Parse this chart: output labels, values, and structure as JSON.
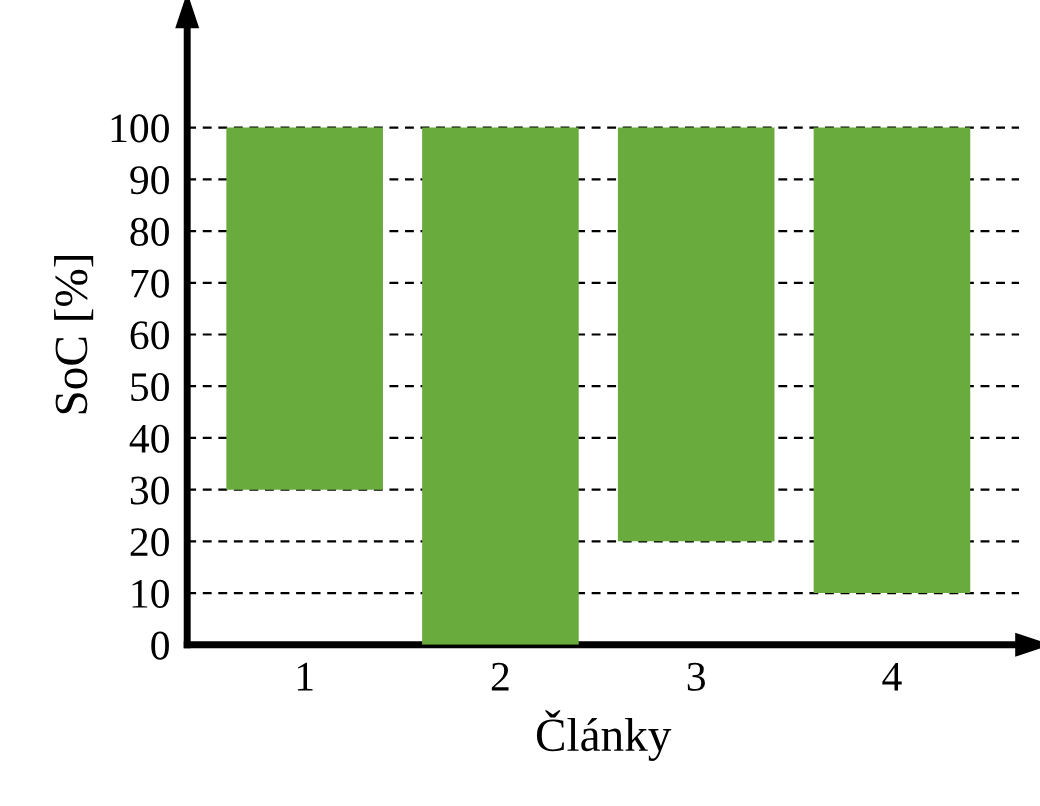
{
  "chart_data": {
    "type": "bar",
    "xlabel": "Články",
    "ylabel": "SoC [%]",
    "categories": [
      "1",
      "2",
      "3",
      "4"
    ],
    "base": [
      30,
      0,
      20,
      10
    ],
    "values": [
      70,
      100,
      80,
      90
    ],
    "color": "#6aab3e",
    "ylim": [
      0,
      120
    ],
    "yticks": [
      0,
      10,
      20,
      30,
      40,
      50,
      60,
      70,
      80,
      90,
      100
    ],
    "grid": "y"
  }
}
